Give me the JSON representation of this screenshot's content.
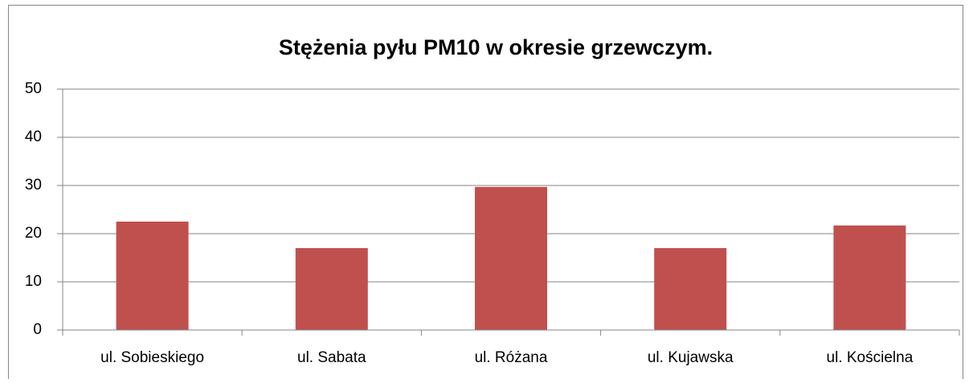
{
  "chart_data": {
    "type": "bar",
    "title": "Stężenia pyłu PM10 w okresie grzewczym.",
    "categories": [
      "ul. Sobieskiego",
      "ul. Sabata",
      "ul. Różana",
      "ul. Kujawska",
      "ul. Kościelna"
    ],
    "values": [
      22.5,
      17,
      29.7,
      17,
      21.7
    ],
    "color": "#c0504d",
    "ylim": [
      0,
      50
    ],
    "yticks": [
      0,
      10,
      20,
      30,
      40,
      50
    ],
    "grid": true
  }
}
